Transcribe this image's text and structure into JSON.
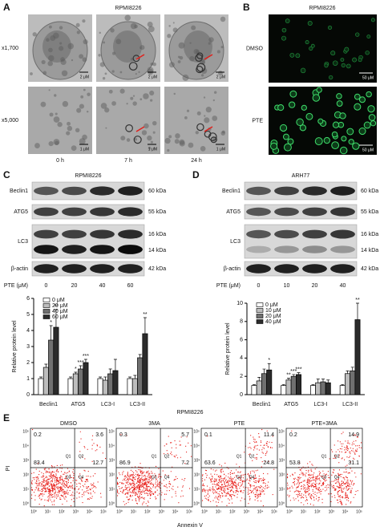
{
  "panel_a": {
    "label": "A",
    "title": "RPMI8226",
    "rows": [
      "x1,700",
      "x5,000"
    ],
    "columns": [
      "0 h",
      "7 h",
      "24 h"
    ],
    "scale_bars": [
      [
        "2 μM",
        "2 μM",
        "2 μM"
      ],
      [
        "1 μM",
        "1 μM",
        "1 μM"
      ]
    ]
  },
  "panel_b": {
    "label": "B",
    "title": "RPMI8226",
    "rows": [
      "DMSO",
      "PTE"
    ],
    "scale_bars": [
      "50 μM",
      "50 μM"
    ]
  },
  "blots": [
    {
      "label": "C",
      "title": "RPMI8226",
      "proteins": [
        "Beclin1",
        "ATG5",
        "LC3",
        "β-actin"
      ],
      "sizes": [
        "60 kDa",
        "55 kDa",
        "16 kDa",
        "14 kDa",
        "42 kDa"
      ],
      "treatment": "PTE (μM)",
      "doses": [
        "0",
        "20",
        "40",
        "60"
      ]
    },
    {
      "label": "D",
      "title": "ARH77",
      "proteins": [
        "Beclin1",
        "ATG5",
        "LC3",
        "β-actin"
      ],
      "sizes": [
        "60 kDa",
        "55 kDa",
        "16 kDa",
        "14 kDa",
        "42 kDa"
      ],
      "treatment": "PTE (μM)",
      "doses": [
        "0",
        "10",
        "20",
        "40"
      ]
    }
  ],
  "chart_data": [
    {
      "type": "bar",
      "ylabel": "Relative protein level",
      "categories": [
        "Beclin1",
        "ATG5",
        "LC3-I",
        "LC3-II"
      ],
      "ylim": [
        0,
        6
      ],
      "yticks": [
        0,
        1,
        2,
        3,
        4,
        5,
        6
      ],
      "series": [
        {
          "name": "0 μM",
          "color": "#ffffff",
          "values": [
            1.0,
            1.0,
            1.0,
            1.0
          ],
          "errors": [
            0.1,
            0.1,
            0.1,
            0.1
          ],
          "significance": [
            null,
            null,
            null,
            null
          ]
        },
        {
          "name": "20 μM",
          "color": "#bdbdbd",
          "values": [
            1.7,
            1.3,
            0.9,
            1.0
          ],
          "errors": [
            0.2,
            0.1,
            0.2,
            0.2
          ],
          "significance": [
            null,
            "*",
            null,
            null
          ]
        },
        {
          "name": "40 μM",
          "color": "#707070",
          "values": [
            3.4,
            1.6,
            1.3,
            2.3
          ],
          "errors": [
            0.9,
            0.2,
            0.3,
            0.2
          ],
          "significance": [
            "*",
            "***",
            null,
            null
          ]
        },
        {
          "name": "60 μM",
          "color": "#2b2b2b",
          "values": [
            4.2,
            2.0,
            1.5,
            3.8
          ],
          "errors": [
            1.1,
            0.2,
            0.7,
            1.0
          ],
          "significance": [
            "**",
            "***",
            null,
            "**"
          ]
        }
      ]
    },
    {
      "type": "bar",
      "ylabel": "Relative protein level",
      "categories": [
        "Beclin1",
        "ATG5",
        "LC3-I",
        "LC3-II"
      ],
      "ylim": [
        0,
        10
      ],
      "yticks": [
        0,
        2,
        4,
        6,
        8,
        10
      ],
      "series": [
        {
          "name": "0 μM",
          "color": "#ffffff",
          "values": [
            1.0,
            1.0,
            1.0,
            1.0
          ],
          "errors": [
            0.1,
            0.1,
            0.1,
            0.1
          ],
          "significance": [
            null,
            null,
            null,
            null
          ]
        },
        {
          "name": "10 μM",
          "color": "#bdbdbd",
          "values": [
            1.5,
            1.6,
            1.3,
            2.3
          ],
          "errors": [
            0.4,
            0.2,
            0.4,
            0.3
          ],
          "significance": [
            null,
            "**",
            null,
            null
          ]
        },
        {
          "name": "20 μM",
          "color": "#707070",
          "values": [
            2.3,
            2.0,
            1.4,
            2.6
          ],
          "errors": [
            0.5,
            0.2,
            0.3,
            0.4
          ],
          "significance": [
            null,
            "***",
            null,
            null
          ]
        },
        {
          "name": "40 μM",
          "color": "#2b2b2b",
          "values": [
            2.7,
            2.2,
            1.3,
            8.2
          ],
          "errors": [
            0.7,
            0.2,
            0.3,
            1.8
          ],
          "significance": [
            "*",
            "***",
            null,
            "**"
          ]
        }
      ]
    }
  ],
  "panel_e": {
    "label": "E",
    "title": "RPMI8226",
    "ylabel": "PI",
    "xlabel": "Annexin V",
    "ticks": [
      "10⁰",
      "10¹",
      "10²",
      "10³",
      "10⁴",
      "10⁵"
    ],
    "quadrant_names": [
      "Q1",
      "Q2",
      "Q3",
      "Q4"
    ],
    "plots": [
      {
        "title": "DMSO",
        "quadrants": [
          0.2,
          3.6,
          83.4,
          12.7
        ]
      },
      {
        "title": "3MA",
        "quadrants": [
          0.3,
          5.7,
          86.9,
          7.2
        ]
      },
      {
        "title": "PTE",
        "quadrants": [
          0.1,
          11.4,
          63.6,
          24.8
        ]
      },
      {
        "title": "PTE+3MA",
        "quadrants": [
          0.2,
          14.9,
          53.8,
          31.1
        ]
      }
    ]
  }
}
